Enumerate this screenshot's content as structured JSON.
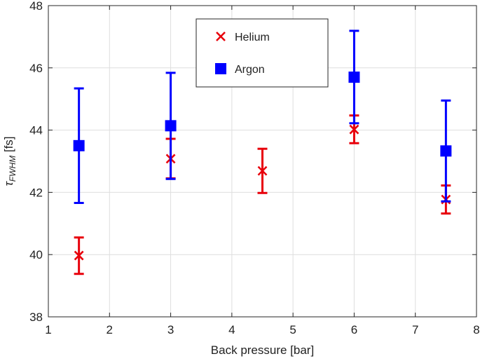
{
  "chart_data": {
    "type": "scatter",
    "xlabel": "Back pressure [bar]",
    "ylabel": {
      "main": "τ",
      "sub": "FWHM",
      "unit": " [fs]"
    },
    "xlim": [
      1,
      8
    ],
    "ylim": [
      38,
      48
    ],
    "xticks": [
      1,
      2,
      3,
      4,
      5,
      6,
      7,
      8
    ],
    "yticks": [
      38,
      40,
      42,
      44,
      46,
      48
    ],
    "grid": true,
    "legend_position": "top-center",
    "series": [
      {
        "name": "Helium",
        "marker": "x",
        "color": "#e8000b",
        "points": [
          {
            "x": 1.5,
            "y": 39.97,
            "low": 39.38,
            "high": 40.55
          },
          {
            "x": 3.0,
            "y": 43.08,
            "low": 42.45,
            "high": 43.72
          },
          {
            "x": 4.5,
            "y": 42.69,
            "low": 41.98,
            "high": 43.4
          },
          {
            "x": 6.0,
            "y": 44.02,
            "low": 43.58,
            "high": 44.47
          },
          {
            "x": 7.5,
            "y": 41.77,
            "low": 41.32,
            "high": 42.22
          }
        ]
      },
      {
        "name": "Argon",
        "marker": "square",
        "color": "#0000ff",
        "points": [
          {
            "x": 1.5,
            "y": 43.5,
            "low": 41.66,
            "high": 45.34
          },
          {
            "x": 3.0,
            "y": 44.14,
            "low": 42.43,
            "high": 45.84
          },
          {
            "x": 6.0,
            "y": 45.7,
            "low": 44.22,
            "high": 47.19
          },
          {
            "x": 7.5,
            "y": 43.33,
            "low": 41.71,
            "high": 44.95
          }
        ]
      }
    ]
  }
}
